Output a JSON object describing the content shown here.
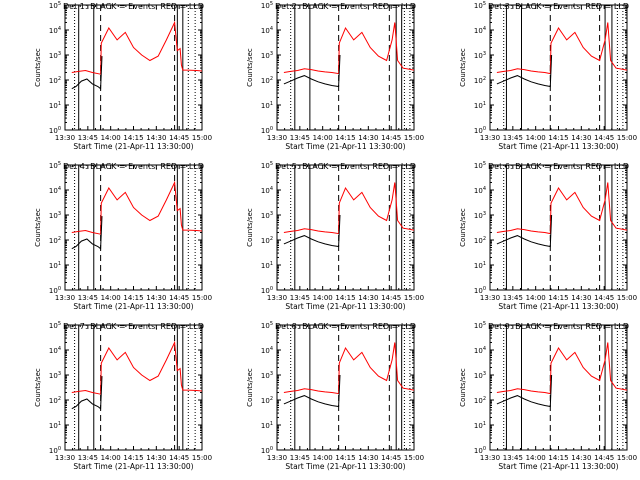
{
  "chart_data": [
    {
      "type": "line",
      "title": "Det 1: BLACK = Events, RED = LLD",
      "xlabel": "Start Time (21-Apr-11 13:30:00)",
      "ylabel": "Counts/sec",
      "x_ticks": [
        "13:30",
        "13:45",
        "14:00",
        "14:15",
        "14:30",
        "14:45",
        "15:00"
      ],
      "y_ticks": [
        "10^0",
        "10^1",
        "10^2",
        "10^3",
        "10^4",
        "10^5"
      ],
      "ylim": [
        1,
        100000
      ],
      "y_scale": "log",
      "xlim_minutes": [
        0,
        100
      ],
      "solid_lines": [
        10,
        21,
        82,
        86
      ],
      "dashed_lines": [
        26,
        80
      ],
      "dotted_lines": [
        7,
        90,
        95
      ],
      "series": [
        {
          "name": "LLD",
          "color": "#ff0000",
          "x": [
            5,
            10,
            15,
            20,
            26,
            26.5,
            32,
            38,
            44,
            50,
            56,
            62,
            68,
            74,
            80,
            82,
            84,
            85,
            86,
            90,
            96,
            100
          ],
          "y": [
            200,
            220,
            240,
            200,
            170,
            3000,
            12000,
            4000,
            8000,
            2000,
            1000,
            600,
            900,
            4000,
            20000,
            1500,
            1800,
            400,
            250,
            250,
            240,
            230
          ]
        },
        {
          "name": "Events",
          "color": "#000000",
          "x": [
            5,
            8,
            12,
            16,
            20,
            24,
            26,
            27
          ],
          "y": [
            45,
            55,
            90,
            110,
            70,
            55,
            45,
            900
          ]
        }
      ]
    },
    {
      "type": "line",
      "title": "Det 2: BLACK = Events, RED = LLD",
      "xlabel": "Start Time (21-Apr-11 13:30:00)",
      "ylabel": "Counts/sec",
      "x_ticks": [
        "13:30",
        "13:45",
        "14:00",
        "14:15",
        "14:30",
        "14:45",
        "15:00"
      ],
      "y_ticks": [
        "10^0",
        "10^1",
        "10^2",
        "10^3",
        "10^4",
        "10^5"
      ],
      "ylim": [
        1,
        100000
      ],
      "y_scale": "log",
      "xlim_minutes": [
        0,
        100
      ],
      "solid_lines": [
        13,
        24,
        87,
        91
      ],
      "dashed_lines": [
        45,
        82
      ],
      "dotted_lines": [
        10,
        93,
        97
      ],
      "series": [
        {
          "name": "LLD",
          "color": "#ff0000",
          "x": [
            5,
            10,
            15,
            20,
            25,
            30,
            35,
            40,
            45,
            45.5,
            50,
            56,
            62,
            68,
            74,
            80,
            84,
            86,
            88,
            92,
            100
          ],
          "y": [
            200,
            220,
            240,
            280,
            260,
            230,
            210,
            200,
            180,
            3000,
            12000,
            4000,
            8000,
            2000,
            900,
            600,
            4000,
            20000,
            600,
            300,
            250
          ]
        },
        {
          "name": "Events",
          "color": "#000000",
          "x": [
            5,
            10,
            15,
            20,
            25,
            30,
            35,
            40,
            45,
            46
          ],
          "y": [
            70,
            90,
            120,
            150,
            110,
            85,
            70,
            60,
            55,
            1000
          ]
        }
      ]
    },
    {
      "type": "line",
      "title": "Det 3: BLACK = Events, RED = LLD",
      "xlabel": "Start Time (21-Apr-11 13:30:00)",
      "ylabel": "Counts/sec",
      "x_ticks": [
        "13:30",
        "13:45",
        "14:00",
        "14:15",
        "14:30",
        "14:45",
        "15:00"
      ],
      "y_ticks": [
        "10^0",
        "10^1",
        "10^2",
        "10^3",
        "10^4",
        "10^5"
      ],
      "ylim": [
        1,
        100000
      ],
      "y_scale": "log",
      "xlim_minutes": [
        0,
        100
      ],
      "solid_lines": [
        12,
        23,
        84,
        89
      ],
      "dashed_lines": [
        44,
        80
      ],
      "dotted_lines": [
        10,
        93,
        97
      ],
      "series": [
        {
          "name": "LLD",
          "color": "#ff0000",
          "x": [
            5,
            10,
            15,
            20,
            25,
            30,
            35,
            40,
            44,
            44.5,
            50,
            56,
            62,
            68,
            74,
            80,
            84,
            86,
            88,
            92,
            100
          ],
          "y": [
            200,
            220,
            240,
            280,
            260,
            230,
            210,
            200,
            180,
            3000,
            12000,
            4000,
            8000,
            2000,
            900,
            600,
            4000,
            20000,
            600,
            300,
            250
          ]
        },
        {
          "name": "Events",
          "color": "#000000",
          "x": [
            5,
            10,
            15,
            20,
            25,
            30,
            35,
            40,
            44,
            45
          ],
          "y": [
            70,
            90,
            120,
            150,
            110,
            85,
            70,
            60,
            55,
            1000
          ]
        }
      ]
    },
    {
      "type": "line",
      "title": "Det 4: BLACK = Events, RED = LLD",
      "xlabel": "Start Time (21-Apr-11 13:30:00)",
      "ylabel": "Counts/sec",
      "x_ticks": [
        "13:30",
        "13:45",
        "14:00",
        "14:15",
        "14:30",
        "14:45",
        "15:00"
      ],
      "y_ticks": [
        "10^0",
        "10^1",
        "10^2",
        "10^3",
        "10^4",
        "10^5"
      ],
      "ylim": [
        1,
        100000
      ],
      "y_scale": "log",
      "xlim_minutes": [
        0,
        100
      ],
      "solid_lines": [
        10,
        21,
        82,
        86
      ],
      "dashed_lines": [
        26,
        80
      ],
      "dotted_lines": [
        7,
        90,
        95
      ],
      "series": [
        {
          "name": "LLD",
          "color": "#ff0000",
          "x": [
            5,
            10,
            15,
            20,
            26,
            26.5,
            32,
            38,
            44,
            50,
            56,
            62,
            68,
            74,
            80,
            82,
            84,
            85,
            86,
            90,
            96,
            100
          ],
          "y": [
            200,
            220,
            240,
            200,
            170,
            3000,
            12000,
            4000,
            8000,
            2000,
            1000,
            600,
            900,
            4000,
            20000,
            1500,
            1800,
            400,
            250,
            250,
            240,
            230
          ]
        },
        {
          "name": "Events",
          "color": "#000000",
          "x": [
            5,
            8,
            12,
            16,
            20,
            24,
            26,
            27
          ],
          "y": [
            45,
            55,
            90,
            110,
            70,
            55,
            45,
            900
          ]
        }
      ]
    },
    {
      "type": "line",
      "title": "Det 5: BLACK = Events, RED = LLD",
      "xlabel": "Start Time (21-Apr-11 13:30:00)",
      "ylabel": "Counts/sec",
      "x_ticks": [
        "13:30",
        "13:45",
        "14:00",
        "14:15",
        "14:30",
        "14:45",
        "15:00"
      ],
      "y_ticks": [
        "10^0",
        "10^1",
        "10^2",
        "10^3",
        "10^4",
        "10^5"
      ],
      "ylim": [
        1,
        100000
      ],
      "y_scale": "log",
      "xlim_minutes": [
        0,
        100
      ],
      "solid_lines": [
        13,
        24,
        87,
        91
      ],
      "dashed_lines": [
        45,
        82
      ],
      "dotted_lines": [
        10,
        93,
        97
      ],
      "series": [
        {
          "name": "LLD",
          "color": "#ff0000",
          "x": [
            5,
            10,
            15,
            20,
            25,
            30,
            35,
            40,
            45,
            45.5,
            50,
            56,
            62,
            68,
            74,
            80,
            84,
            86,
            88,
            92,
            100
          ],
          "y": [
            200,
            220,
            240,
            280,
            260,
            230,
            210,
            200,
            180,
            3000,
            12000,
            4000,
            8000,
            2000,
            900,
            600,
            4000,
            20000,
            600,
            300,
            250
          ]
        },
        {
          "name": "Events",
          "color": "#000000",
          "x": [
            5,
            10,
            15,
            20,
            25,
            30,
            35,
            40,
            45,
            46
          ],
          "y": [
            70,
            90,
            120,
            150,
            110,
            85,
            70,
            60,
            55,
            1000
          ]
        }
      ]
    },
    {
      "type": "line",
      "title": "Det 6: BLACK = Events, RED = LLD",
      "xlabel": "Start Time (21-Apr-11 13:30:00)",
      "ylabel": "Counts/sec",
      "x_ticks": [
        "13:30",
        "13:45",
        "14:00",
        "14:15",
        "14:30",
        "14:45",
        "15:00"
      ],
      "y_ticks": [
        "10^0",
        "10^1",
        "10^2",
        "10^3",
        "10^4",
        "10^5"
      ],
      "ylim": [
        1,
        100000
      ],
      "y_scale": "log",
      "xlim_minutes": [
        0,
        100
      ],
      "solid_lines": [
        12,
        23,
        84,
        89
      ],
      "dashed_lines": [
        44,
        80
      ],
      "dotted_lines": [
        10,
        93,
        97
      ],
      "series": [
        {
          "name": "LLD",
          "color": "#ff0000",
          "x": [
            5,
            10,
            15,
            20,
            25,
            30,
            35,
            40,
            44,
            44.5,
            50,
            56,
            62,
            68,
            74,
            80,
            84,
            86,
            88,
            92,
            100
          ],
          "y": [
            200,
            220,
            240,
            280,
            260,
            230,
            210,
            200,
            180,
            3000,
            12000,
            4000,
            8000,
            2000,
            900,
            600,
            4000,
            20000,
            600,
            300,
            250
          ]
        },
        {
          "name": "Events",
          "color": "#000000",
          "x": [
            5,
            10,
            15,
            20,
            25,
            30,
            35,
            40,
            44,
            45
          ],
          "y": [
            70,
            90,
            120,
            150,
            110,
            85,
            70,
            60,
            55,
            1000
          ]
        }
      ]
    },
    {
      "type": "line",
      "title": "Det 7: BLACK = Events, RED = LLD",
      "xlabel": "Start Time (21-Apr-11 13:30:00)",
      "ylabel": "Counts/sec",
      "x_ticks": [
        "13:30",
        "13:45",
        "14:00",
        "14:15",
        "14:30",
        "14:45",
        "15:00"
      ],
      "y_ticks": [
        "10^0",
        "10^1",
        "10^2",
        "10^3",
        "10^4",
        "10^5"
      ],
      "ylim": [
        1,
        100000
      ],
      "y_scale": "log",
      "xlim_minutes": [
        0,
        100
      ],
      "solid_lines": [
        10,
        21,
        82,
        86
      ],
      "dashed_lines": [
        26,
        80
      ],
      "dotted_lines": [
        7,
        90,
        95
      ],
      "series": [
        {
          "name": "LLD",
          "color": "#ff0000",
          "x": [
            5,
            10,
            15,
            20,
            26,
            26.5,
            32,
            38,
            44,
            50,
            56,
            62,
            68,
            74,
            80,
            82,
            84,
            85,
            86,
            90,
            96,
            100
          ],
          "y": [
            200,
            220,
            240,
            200,
            170,
            3000,
            12000,
            4000,
            8000,
            2000,
            1000,
            600,
            900,
            4000,
            20000,
            1500,
            1800,
            400,
            250,
            250,
            240,
            230
          ]
        },
        {
          "name": "Events",
          "color": "#000000",
          "x": [
            5,
            8,
            12,
            16,
            20,
            24,
            26,
            27
          ],
          "y": [
            45,
            55,
            90,
            110,
            70,
            55,
            45,
            900
          ]
        }
      ]
    },
    {
      "type": "line",
      "title": "Det 8: BLACK = Events, RED = LLD",
      "xlabel": "Start Time (21-Apr-11 13:30:00)",
      "ylabel": "Counts/sec",
      "x_ticks": [
        "13:30",
        "13:45",
        "14:00",
        "14:15",
        "14:30",
        "14:45",
        "15:00"
      ],
      "y_ticks": [
        "10^0",
        "10^1",
        "10^2",
        "10^3",
        "10^4",
        "10^5"
      ],
      "ylim": [
        1,
        100000
      ],
      "y_scale": "log",
      "xlim_minutes": [
        0,
        100
      ],
      "solid_lines": [
        13,
        24,
        87,
        91
      ],
      "dashed_lines": [
        45,
        82
      ],
      "dotted_lines": [
        10,
        93,
        97
      ],
      "series": [
        {
          "name": "LLD",
          "color": "#ff0000",
          "x": [
            5,
            10,
            15,
            20,
            25,
            30,
            35,
            40,
            45,
            45.5,
            50,
            56,
            62,
            68,
            74,
            80,
            84,
            86,
            88,
            92,
            100
          ],
          "y": [
            200,
            220,
            240,
            280,
            260,
            230,
            210,
            200,
            180,
            3000,
            12000,
            4000,
            8000,
            2000,
            900,
            600,
            4000,
            20000,
            600,
            300,
            250
          ]
        },
        {
          "name": "Events",
          "color": "#000000",
          "x": [
            5,
            10,
            15,
            20,
            25,
            30,
            35,
            40,
            45,
            46
          ],
          "y": [
            70,
            90,
            120,
            150,
            110,
            85,
            70,
            60,
            55,
            1000
          ]
        }
      ]
    },
    {
      "type": "line",
      "title": "Det 9: BLACK = Events, RED = LLD",
      "xlabel": "Start Time (21-Apr-11 13:30:00)",
      "ylabel": "Counts/sec",
      "x_ticks": [
        "13:30",
        "13:45",
        "14:00",
        "14:15",
        "14:30",
        "14:45",
        "15:00"
      ],
      "y_ticks": [
        "10^0",
        "10^1",
        "10^2",
        "10^3",
        "10^4",
        "10^5"
      ],
      "ylim": [
        1,
        100000
      ],
      "y_scale": "log",
      "xlim_minutes": [
        0,
        100
      ],
      "solid_lines": [
        12,
        23,
        84,
        89
      ],
      "dashed_lines": [
        44,
        80
      ],
      "dotted_lines": [
        10,
        93,
        97
      ],
      "series": [
        {
          "name": "LLD",
          "color": "#ff0000",
          "x": [
            5,
            10,
            15,
            20,
            25,
            30,
            35,
            40,
            44,
            44.5,
            50,
            56,
            62,
            68,
            74,
            80,
            84,
            86,
            88,
            92,
            100
          ],
          "y": [
            200,
            220,
            240,
            280,
            260,
            230,
            210,
            200,
            180,
            3000,
            12000,
            4000,
            8000,
            2000,
            900,
            600,
            4000,
            20000,
            600,
            300,
            250
          ]
        },
        {
          "name": "Events",
          "color": "#000000",
          "x": [
            5,
            10,
            15,
            20,
            25,
            30,
            35,
            40,
            44,
            45
          ],
          "y": [
            70,
            90,
            120,
            150,
            110,
            85,
            70,
            60,
            55,
            1000
          ]
        }
      ]
    }
  ]
}
